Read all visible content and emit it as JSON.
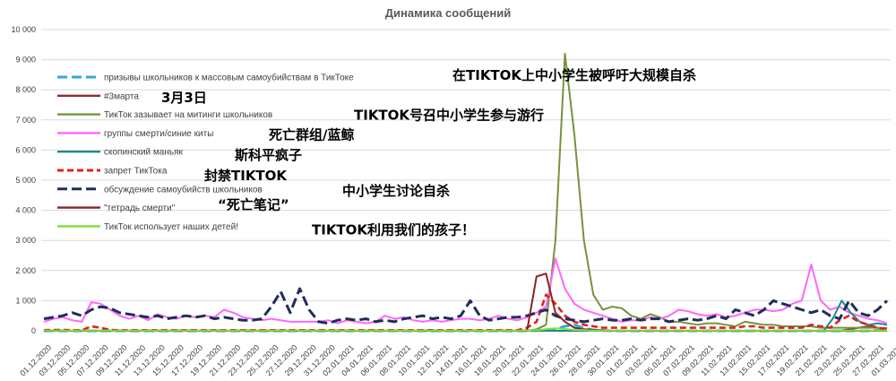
{
  "chart_data": {
    "type": "line",
    "title": "Динамика сообщений",
    "xlabel": "",
    "ylabel": "",
    "ylim": [
      0,
      10000
    ],
    "yticks": [
      "0",
      "1 000",
      "2 000",
      "3 000",
      "4 000",
      "5 000",
      "6 000",
      "7 000",
      "8 000",
      "9 000",
      "10 000"
    ],
    "x_tick_labels": [
      "01.12.2020",
      "03.12.2020",
      "05.12.2020",
      "07.12.2020",
      "09.12.2020",
      "11.12.2020",
      "13.12.2020",
      "15.12.2020",
      "17.12.2020",
      "19.12.2020",
      "21.12.2020",
      "23.12.2020",
      "25.12.2020",
      "27.12.2020",
      "29.12.2020",
      "31.12.2020",
      "02.01.2021",
      "04.01.2021",
      "06.01.2021",
      "08.01.2021",
      "10.01.2021",
      "12.01.2021",
      "14.01.2021",
      "16.01.2021",
      "18.01.2021",
      "20.01.2021",
      "22.01.2021",
      "24.01.2021",
      "26.01.2021",
      "28.01.2021",
      "30.01.2021",
      "01.02.2021",
      "03.02.2021",
      "05.02.2021",
      "07.02.2021",
      "09.02.2021",
      "11.02.2021",
      "13.02.2021",
      "15.02.2021",
      "17.02.2021",
      "19.02.2021",
      "21.02.2021",
      "23.02.2021",
      "25.02.2021",
      "27.02.2021",
      "01.03.2021"
    ],
    "grid": true,
    "legend_position": "top-left",
    "series": [
      {
        "name": "призывы школьников к массовым самоубийствам  в ТикТоке",
        "annotation": "在TIKTOK上中小学生被呼吁大规模自杀",
        "color": "#2eaadc",
        "dash": "long-dash",
        "values": [
          0,
          0,
          0,
          0,
          0,
          0,
          0,
          0,
          0,
          0,
          0,
          0,
          0,
          0,
          0,
          0,
          0,
          0,
          0,
          0,
          0,
          0,
          0,
          0,
          0,
          0,
          0,
          0,
          0,
          0,
          0,
          0,
          0,
          0,
          0,
          0,
          0,
          0,
          0,
          0,
          0,
          0,
          0,
          0,
          0,
          0,
          0,
          0,
          0,
          0,
          0,
          0,
          10,
          40,
          60,
          150,
          200,
          80,
          30,
          10,
          0,
          0,
          0,
          0,
          0,
          0,
          0,
          0,
          0,
          0,
          0,
          0,
          0,
          0,
          0,
          0,
          0,
          0,
          0,
          0,
          0,
          0,
          0,
          0,
          0,
          0,
          0,
          0,
          20,
          0
        ]
      },
      {
        "name": "#3марта",
        "annotation": "3月3日",
        "color": "#8b2e2e",
        "dash": "solid",
        "values": [
          0,
          0,
          0,
          0,
          0,
          0,
          0,
          0,
          0,
          0,
          0,
          0,
          0,
          0,
          0,
          0,
          0,
          0,
          0,
          0,
          0,
          0,
          0,
          0,
          0,
          0,
          0,
          0,
          0,
          0,
          0,
          0,
          0,
          0,
          0,
          0,
          0,
          0,
          0,
          0,
          0,
          0,
          0,
          0,
          0,
          0,
          0,
          0,
          0,
          0,
          0,
          0,
          0,
          0,
          0,
          0,
          0,
          0,
          0,
          0,
          0,
          0,
          0,
          0,
          0,
          0,
          0,
          0,
          0,
          0,
          0,
          0,
          0,
          0,
          0,
          0,
          0,
          0,
          0,
          0,
          0,
          0,
          0,
          0,
          0,
          50,
          100,
          150,
          100,
          80
        ]
      },
      {
        "name": "ТикТок зазывает на митинги школьников",
        "annotation": "TIKTOK号召中小学生参与游行",
        "color": "#77933c",
        "dash": "solid",
        "values": [
          0,
          0,
          0,
          0,
          0,
          0,
          0,
          0,
          0,
          0,
          0,
          0,
          0,
          0,
          0,
          0,
          0,
          0,
          0,
          0,
          0,
          0,
          0,
          0,
          0,
          0,
          0,
          0,
          0,
          0,
          0,
          0,
          0,
          0,
          0,
          0,
          0,
          0,
          0,
          0,
          0,
          0,
          0,
          0,
          0,
          0,
          0,
          0,
          0,
          0,
          0,
          0,
          50,
          200,
          3000,
          9200,
          6500,
          3000,
          1200,
          700,
          800,
          750,
          500,
          400,
          550,
          450,
          300,
          300,
          250,
          200,
          250,
          250,
          200,
          150,
          300,
          250,
          200,
          200,
          150,
          150,
          150,
          150,
          100,
          100,
          100,
          100,
          100,
          100,
          100,
          50
        ]
      },
      {
        "name": "группы смерти/синие киты",
        "annotation": "死亡群组/蓝鲸",
        "color": "#ff66ff",
        "dash": "solid",
        "values": [
          300,
          400,
          450,
          350,
          300,
          950,
          900,
          700,
          500,
          400,
          500,
          350,
          550,
          450,
          400,
          500,
          450,
          500,
          450,
          700,
          600,
          450,
          400,
          350,
          400,
          350,
          300,
          300,
          300,
          300,
          350,
          250,
          350,
          300,
          250,
          300,
          500,
          400,
          450,
          350,
          300,
          350,
          300,
          350,
          400,
          400,
          350,
          400,
          500,
          400,
          350,
          450,
          600,
          800,
          2400,
          1400,
          900,
          700,
          600,
          500,
          400,
          300,
          350,
          350,
          450,
          400,
          500,
          700,
          650,
          550,
          500,
          550,
          450,
          500,
          600,
          700,
          700,
          650,
          700,
          900,
          1000,
          2200,
          1000,
          700,
          800,
          600,
          500,
          400,
          350,
          250
        ]
      },
      {
        "name": "скопинский маньяк",
        "annotation": "斯科平疯子",
        "color": "#1f8a8a",
        "dash": "solid",
        "values": [
          0,
          0,
          0,
          0,
          0,
          0,
          0,
          0,
          0,
          0,
          0,
          0,
          0,
          0,
          0,
          0,
          0,
          0,
          0,
          0,
          0,
          0,
          0,
          0,
          0,
          0,
          0,
          0,
          0,
          0,
          0,
          0,
          0,
          0,
          0,
          0,
          0,
          0,
          0,
          0,
          0,
          0,
          0,
          0,
          0,
          0,
          0,
          0,
          0,
          0,
          0,
          0,
          0,
          0,
          0,
          0,
          0,
          0,
          0,
          0,
          0,
          0,
          0,
          0,
          0,
          0,
          0,
          0,
          0,
          0,
          0,
          0,
          0,
          0,
          0,
          0,
          0,
          0,
          0,
          0,
          0,
          0,
          0,
          0,
          0,
          0,
          0,
          400,
          1000,
          600,
          300,
          200,
          250,
          200
        ]
      },
      {
        "name": "запрет ТикТока",
        "annotation": "封禁TIKTOK",
        "color": "#e02020",
        "dash": "dash",
        "values": [
          20,
          30,
          30,
          20,
          20,
          150,
          100,
          30,
          20,
          20,
          20,
          20,
          20,
          20,
          20,
          20,
          20,
          20,
          20,
          20,
          20,
          20,
          20,
          20,
          20,
          20,
          20,
          20,
          20,
          20,
          20,
          20,
          20,
          20,
          20,
          20,
          20,
          20,
          20,
          20,
          20,
          20,
          20,
          20,
          20,
          20,
          20,
          20,
          20,
          20,
          20,
          100,
          300,
          1200,
          900,
          500,
          300,
          200,
          150,
          100,
          100,
          100,
          100,
          100,
          100,
          100,
          100,
          100,
          100,
          100,
          100,
          100,
          100,
          100,
          150,
          150,
          100,
          100,
          100,
          100,
          100,
          200,
          150,
          100,
          350,
          500,
          300,
          200,
          100,
          50
        ]
      },
      {
        "name": "обсуждение самоубийств школьников",
        "annotation": "中小学生讨论自杀",
        "color": "#1f2d5a",
        "dash": "long-dash",
        "values": [
          400,
          450,
          500,
          600,
          500,
          700,
          800,
          750,
          600,
          550,
          500,
          450,
          500,
          400,
          450,
          500,
          450,
          500,
          400,
          450,
          400,
          350,
          350,
          400,
          800,
          1300,
          600,
          1400,
          700,
          300,
          250,
          350,
          400,
          350,
          400,
          300,
          350,
          300,
          400,
          450,
          500,
          400,
          450,
          400,
          500,
          1000,
          500,
          350,
          400,
          450,
          450,
          500,
          600,
          700,
          500,
          400,
          350,
          300,
          350,
          400,
          350,
          350,
          400,
          350,
          400,
          400,
          300,
          350,
          400,
          350,
          400,
          500,
          400,
          700,
          600,
          500,
          700,
          1000,
          900,
          800,
          700,
          600,
          700,
          500,
          400,
          1000,
          600,
          500,
          700,
          1000
        ]
      },
      {
        "name": "\"тетрадь смерти\"",
        "annotation": "“死亡笔记”",
        "color": "#8b2020",
        "dash": "solid",
        "values": [
          0,
          0,
          0,
          0,
          0,
          0,
          0,
          0,
          0,
          0,
          0,
          0,
          0,
          0,
          0,
          0,
          0,
          0,
          0,
          0,
          0,
          0,
          0,
          0,
          0,
          0,
          0,
          0,
          0,
          0,
          0,
          0,
          0,
          0,
          0,
          0,
          0,
          0,
          0,
          0,
          0,
          0,
          0,
          0,
          0,
          0,
          0,
          0,
          0,
          0,
          0,
          0,
          1800,
          1900,
          600,
          300,
          100,
          50,
          30,
          20,
          0,
          0,
          0,
          0,
          0,
          0,
          0,
          0,
          0,
          0,
          0,
          0,
          0,
          0,
          0,
          0,
          0,
          0,
          0,
          0,
          0,
          0,
          0,
          0,
          0,
          0,
          0,
          0,
          0,
          0
        ]
      },
      {
        "name": "ТикТок использует наших детей!",
        "annotation": "TIKTOK利用我们的孩子！",
        "color": "#7ee03a",
        "dash": "solid",
        "values": [
          10,
          10,
          10,
          10,
          10,
          10,
          10,
          10,
          10,
          10,
          10,
          10,
          10,
          10,
          10,
          10,
          10,
          10,
          10,
          10,
          10,
          10,
          10,
          10,
          10,
          10,
          10,
          10,
          10,
          10,
          10,
          10,
          10,
          10,
          10,
          10,
          10,
          10,
          10,
          10,
          10,
          10,
          10,
          10,
          10,
          10,
          10,
          10,
          10,
          10,
          10,
          10,
          20,
          50,
          80,
          60,
          30,
          20,
          10,
          10,
          10,
          10,
          10,
          10,
          10,
          10,
          10,
          10,
          10,
          10,
          10,
          10,
          10,
          10,
          10,
          10,
          10,
          10,
          10,
          10,
          10,
          10,
          10,
          10,
          10,
          10,
          10,
          10,
          10,
          10
        ]
      }
    ]
  }
}
